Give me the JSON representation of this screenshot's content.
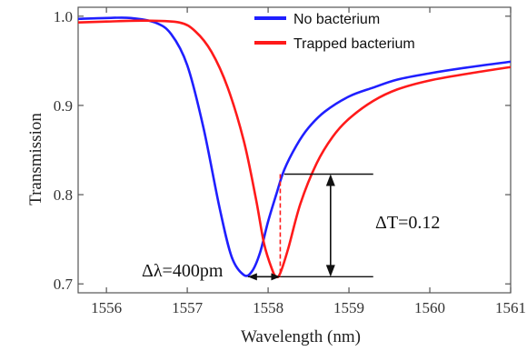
{
  "chart_data": {
    "type": "line",
    "xlabel": "Wavelength (nm)",
    "ylabel": "Transmission",
    "xlim": [
      1555.65,
      1561.0
    ],
    "ylim": [
      0.69,
      1.01
    ],
    "xticks": [
      1556,
      1557,
      1558,
      1559,
      1560,
      1561
    ],
    "yticks": [
      0.7,
      0.8,
      0.9,
      1.0
    ],
    "ytick_labels": [
      "0.7",
      "0.8",
      "0.9",
      "1.0"
    ],
    "legend_position": "top-right",
    "series": [
      {
        "name": "No bacterium",
        "color": "#1f1fff",
        "x": [
          1555.65,
          1556.0,
          1556.3,
          1556.6,
          1556.8,
          1557.0,
          1557.2,
          1557.4,
          1557.55,
          1557.7,
          1557.8,
          1557.9,
          1558.0,
          1558.1,
          1558.2,
          1558.35,
          1558.5,
          1558.7,
          1559.0,
          1559.3,
          1559.6,
          1560.0,
          1560.5,
          1561.0
        ],
        "y": [
          0.997,
          0.998,
          0.998,
          0.993,
          0.98,
          0.945,
          0.875,
          0.785,
          0.73,
          0.71,
          0.714,
          0.735,
          0.77,
          0.8,
          0.828,
          0.855,
          0.875,
          0.893,
          0.91,
          0.92,
          0.929,
          0.936,
          0.943,
          0.949
        ]
      },
      {
        "name": "Trapped bacterium",
        "color": "#ff1a1a",
        "x": [
          1555.65,
          1556.0,
          1556.5,
          1556.9,
          1557.1,
          1557.3,
          1557.5,
          1557.7,
          1557.85,
          1557.95,
          1558.05,
          1558.1,
          1558.15,
          1558.25,
          1558.4,
          1558.6,
          1558.8,
          1559.0,
          1559.3,
          1559.6,
          1560.0,
          1560.5,
          1561.0
        ],
        "y": [
          0.993,
          0.994,
          0.995,
          0.993,
          0.983,
          0.96,
          0.92,
          0.86,
          0.795,
          0.745,
          0.716,
          0.708,
          0.712,
          0.74,
          0.79,
          0.835,
          0.865,
          0.885,
          0.905,
          0.918,
          0.928,
          0.936,
          0.943
        ]
      }
    ],
    "annotations": {
      "delta_lambda": "Δλ=400pm",
      "delta_t": "ΔT=0.12",
      "delta_lambda_range": [
        1557.75,
        1558.15
      ],
      "delta_t_range": [
        0.708,
        0.823
      ],
      "delta_t_x": 1558.2,
      "delta_t_line_x_end": 1559.3
    }
  }
}
